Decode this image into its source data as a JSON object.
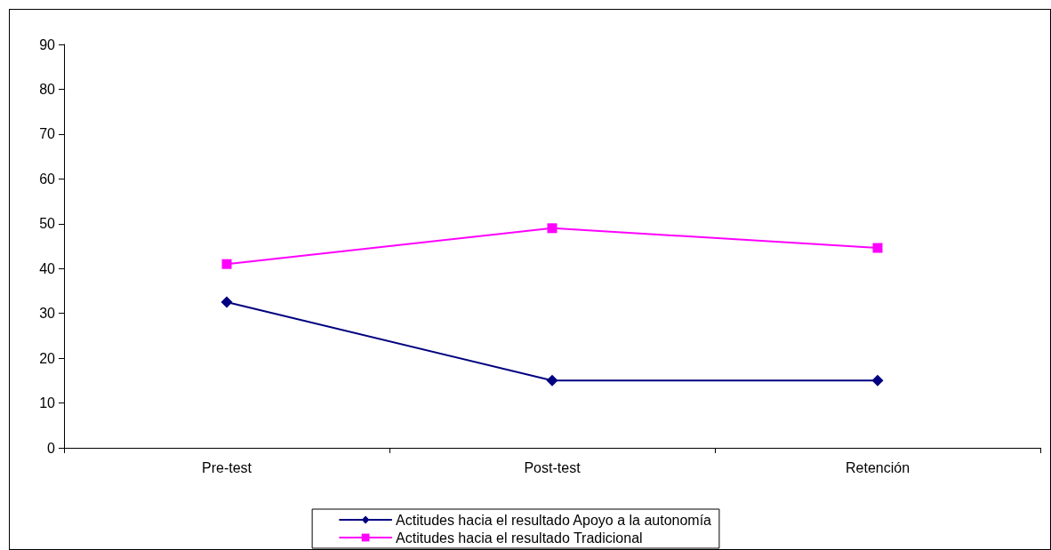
{
  "chart_data": {
    "type": "line",
    "categories": [
      "Pre-test",
      "Post-test",
      "Retención"
    ],
    "series": [
      {
        "name": "Actitudes hacia el resultado Apoyo a la autonomía",
        "color": "#000080",
        "marker": "diamond",
        "values": [
          32.5,
          15,
          15
        ]
      },
      {
        "name": "Actitudes hacia el resultado Tradicional",
        "color": "#ff00ff",
        "marker": "square",
        "values": [
          41,
          49,
          44.6
        ]
      }
    ],
    "ylim": [
      0,
      90
    ],
    "yticks": [
      0,
      10,
      20,
      30,
      40,
      50,
      60,
      70,
      80,
      90
    ],
    "grid": false,
    "legend": "bottom",
    "line_style": "solid"
  }
}
